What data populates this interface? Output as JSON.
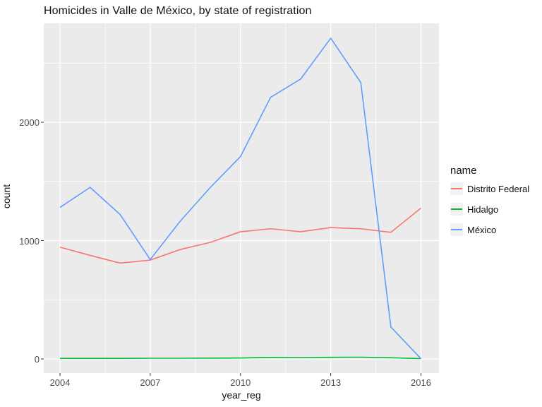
{
  "chart_data": {
    "type": "line",
    "title": "Homicides in Valle de México, by state of registration",
    "xlabel": "year_reg",
    "ylabel": "count",
    "legend": {
      "title": "name",
      "position": "right"
    },
    "x": [
      2004,
      2005,
      2006,
      2007,
      2008,
      2009,
      2010,
      2011,
      2012,
      2013,
      2014,
      2015,
      2016
    ],
    "series": [
      {
        "name": "Distrito Federal",
        "color": "#F8766D",
        "values": [
          945,
          875,
          810,
          835,
          925,
          985,
          1075,
          1100,
          1075,
          1110,
          1100,
          1070,
          1275
        ]
      },
      {
        "name": "Hidalgo",
        "color": "#00BA38",
        "values": [
          5,
          5,
          5,
          6,
          6,
          7,
          8,
          13,
          12,
          14,
          15,
          10,
          3
        ]
      },
      {
        "name": "México",
        "color": "#619CFF",
        "values": [
          1280,
          1450,
          1220,
          840,
          1165,
          1450,
          1710,
          2210,
          2365,
          2710,
          2335,
          270,
          2
        ]
      }
    ],
    "xticks": [
      2004,
      2007,
      2010,
      2013,
      2016
    ],
    "yticks": [
      0,
      1000,
      2000
    ],
    "x_minor": [
      2005.5,
      2008.5,
      2011.5,
      2014.5
    ],
    "y_minor": [
      500,
      1500,
      2500
    ],
    "xlim": [
      2004,
      2016
    ],
    "ylim": [
      0,
      2750
    ],
    "grid": true,
    "panel_bg": "#EBEBEB",
    "grid_color": "#FFFFFF",
    "tick_color": "#333333"
  }
}
